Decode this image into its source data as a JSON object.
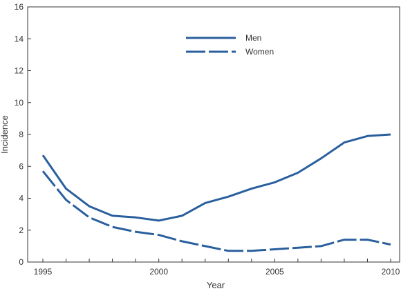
{
  "chart_data": {
    "type": "line",
    "xlabel": "Year",
    "ylabel": "Incidence",
    "xlim": [
      1995,
      2010
    ],
    "ylim": [
      0,
      16
    ],
    "x_ticks": [
      1995,
      2000,
      2005,
      2010
    ],
    "y_ticks": [
      0,
      2,
      4,
      6,
      8,
      10,
      12,
      14,
      16
    ],
    "x": [
      1995,
      1996,
      1997,
      1998,
      1999,
      2000,
      2001,
      2002,
      2003,
      2004,
      2005,
      2006,
      2007,
      2008,
      2009,
      2010
    ],
    "series": [
      {
        "name": "Men",
        "style": "solid",
        "color": "#2a5f9e",
        "values": [
          6.7,
          4.6,
          3.5,
          2.9,
          2.8,
          2.6,
          2.9,
          3.7,
          4.1,
          4.6,
          5.0,
          5.6,
          6.5,
          7.5,
          7.9,
          8.0
        ]
      },
      {
        "name": "Women",
        "style": "dashed",
        "color": "#2a5f9e",
        "values": [
          5.7,
          3.9,
          2.8,
          2.2,
          1.9,
          1.7,
          1.3,
          1.0,
          0.7,
          0.7,
          0.8,
          0.9,
          1.0,
          1.4,
          1.4,
          1.1
        ]
      }
    ],
    "legend_position": "top-center",
    "grid": false
  }
}
